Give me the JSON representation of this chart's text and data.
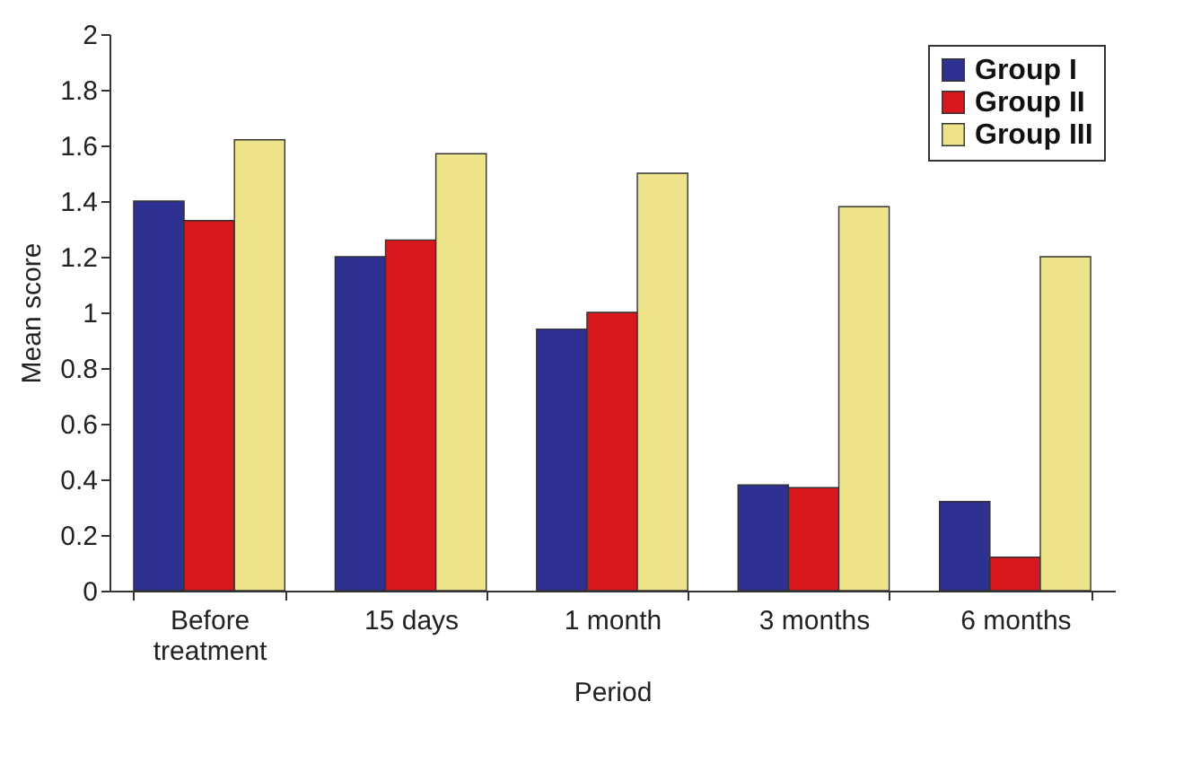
{
  "chart_data": {
    "type": "bar",
    "xlabel": "Period",
    "ylabel": "Mean score",
    "categories": [
      "Before treatment",
      "15 days",
      "1 month",
      "3 months",
      "6 months"
    ],
    "series": [
      {
        "name": "Group I",
        "color": "#2e3192",
        "values": [
          1.4,
          1.2,
          0.94,
          0.38,
          0.32
        ]
      },
      {
        "name": "Group II",
        "color": "#d7191f",
        "values": [
          1.33,
          1.26,
          1.0,
          0.37,
          0.12
        ]
      },
      {
        "name": "Group III",
        "color": "#ede38a",
        "values": [
          1.62,
          1.57,
          1.5,
          1.38,
          1.2
        ]
      }
    ],
    "ylim": [
      0,
      2
    ],
    "yticks": [
      0,
      0.2,
      0.4,
      0.6,
      0.8,
      1,
      1.2,
      1.4,
      1.6,
      1.8,
      2
    ],
    "grid": false,
    "legend": "top right"
  }
}
